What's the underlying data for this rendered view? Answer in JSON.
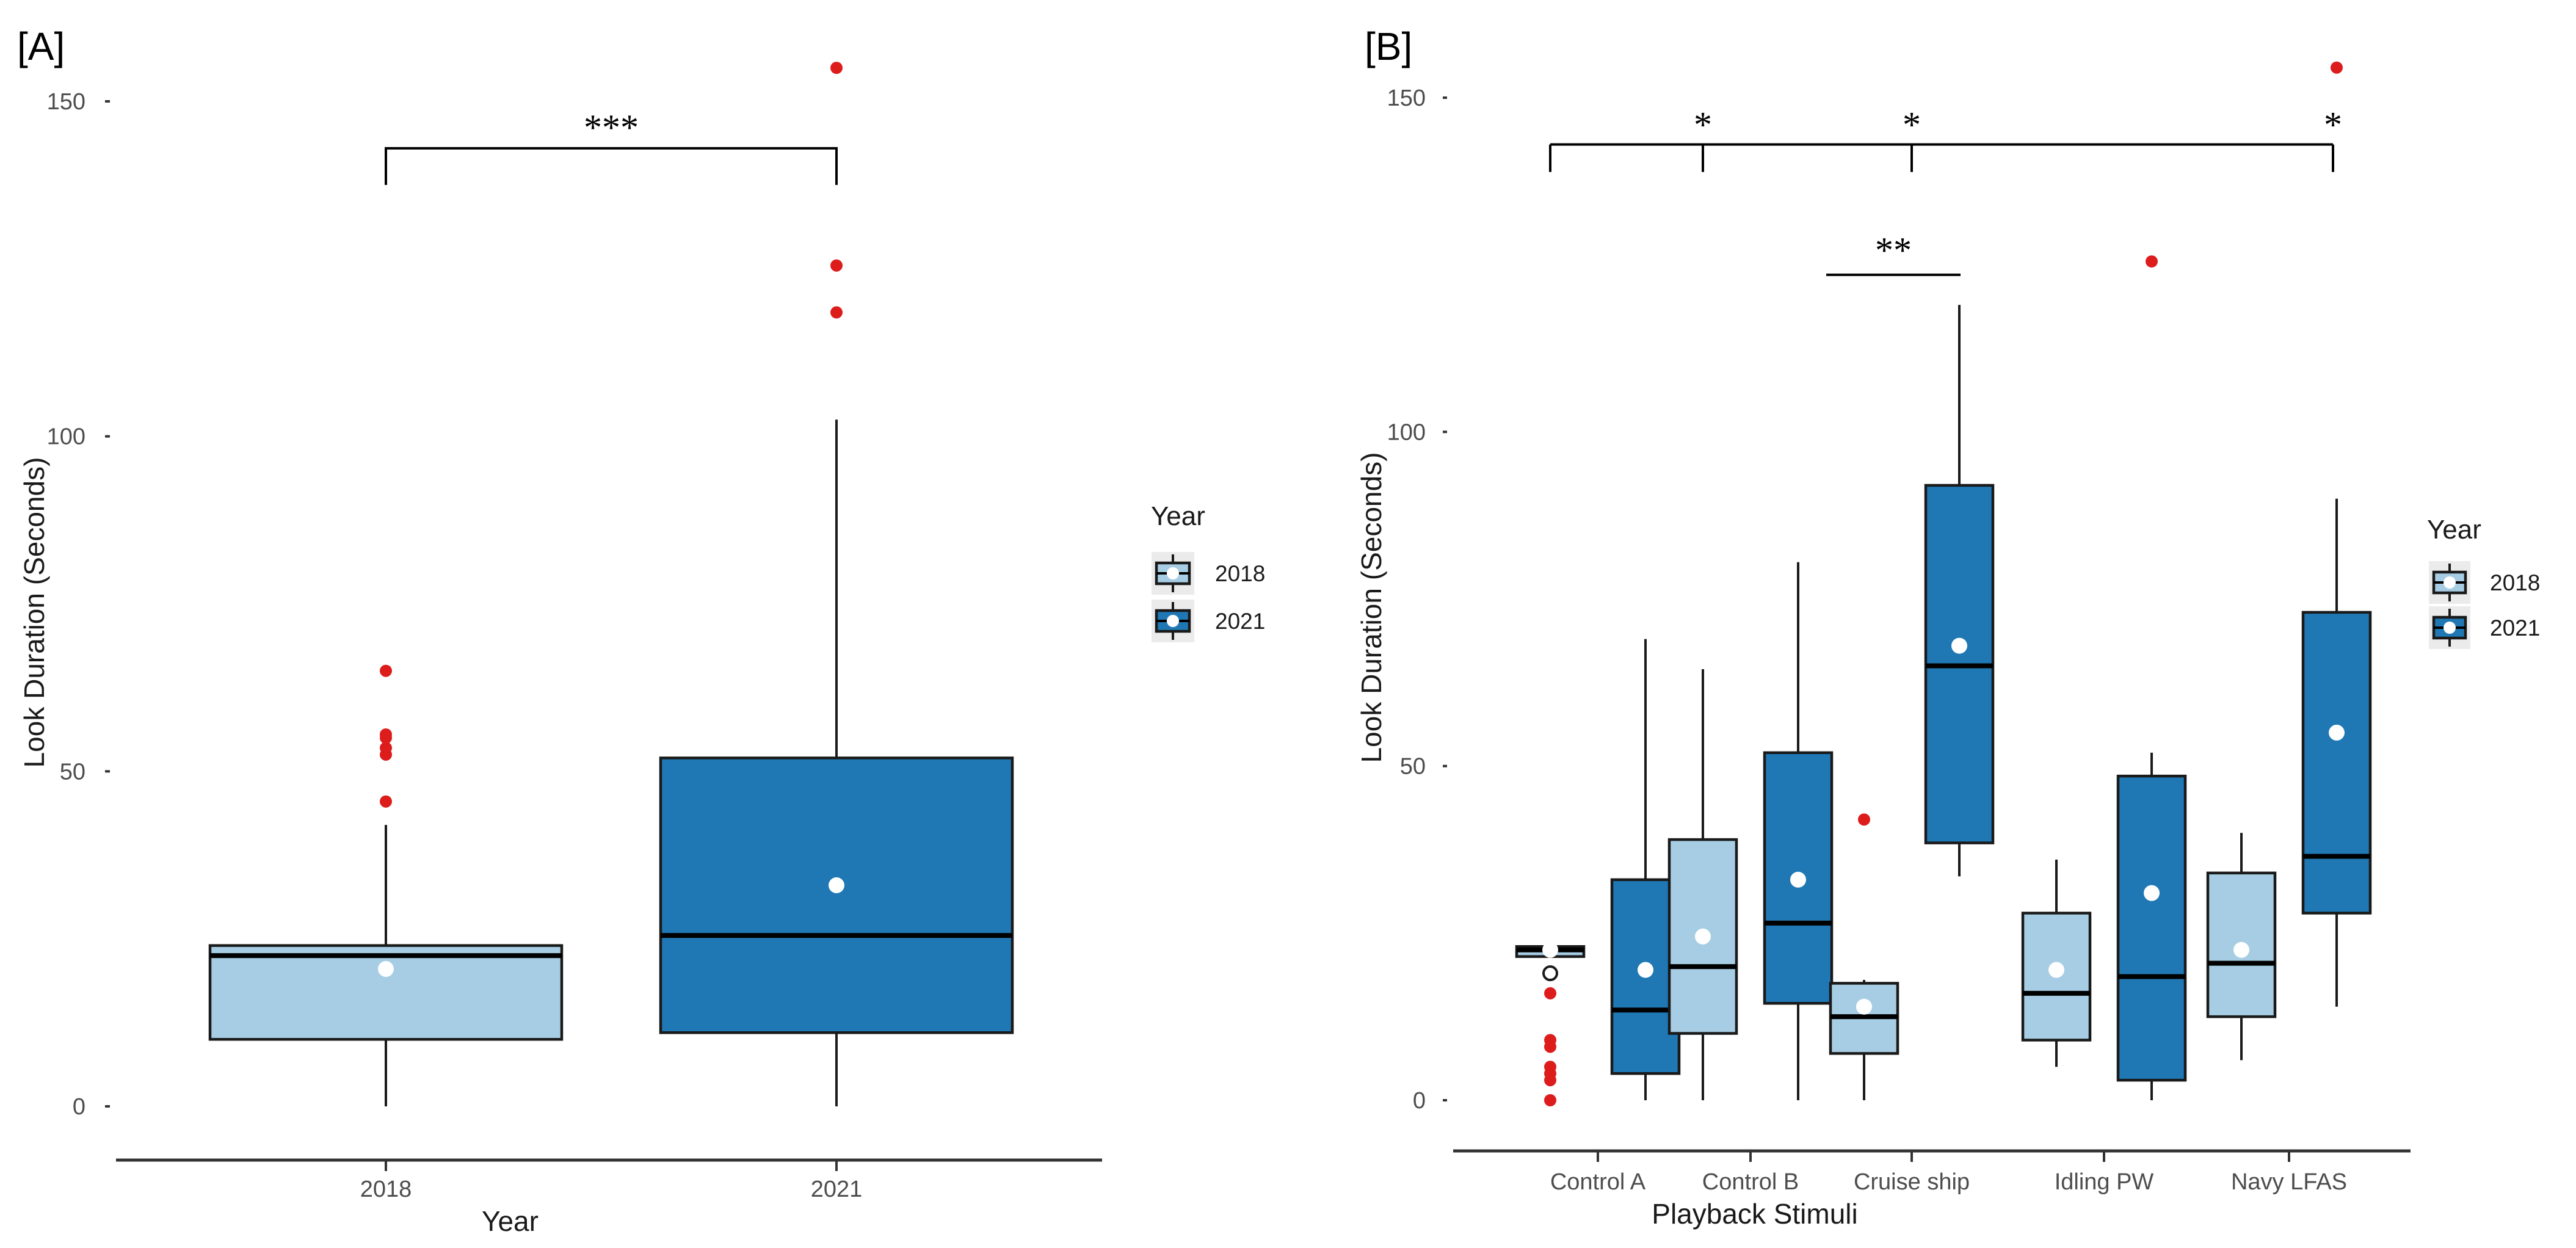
{
  "chart_data": [
    {
      "id": "A",
      "type": "boxplot",
      "panel_label": "[A]",
      "xlabel": "Year",
      "ylabel": "Look Duration (Seconds)",
      "ylim": [
        -8,
        158
      ],
      "yticks": [
        0,
        50,
        100,
        150
      ],
      "categories": [
        "2018",
        "2021"
      ],
      "boxes": [
        {
          "category": "2018",
          "group": "2018",
          "min": 0,
          "q1": 10,
          "median": 22.5,
          "q3": 24,
          "max": 42,
          "mean": 20.5,
          "outliers": [
            45.5,
            52.5,
            53.5,
            55,
            55.5,
            65
          ]
        },
        {
          "category": "2021",
          "group": "2021",
          "min": 0,
          "q1": 11,
          "median": 25.5,
          "q3": 52,
          "max": 102.5,
          "mean": 33,
          "outliers": [
            118.5,
            125.5,
            155
          ]
        }
      ],
      "significance": [
        {
          "from": "2018",
          "to": "2021",
          "label": "***",
          "y": 143
        }
      ],
      "legend": {
        "title": "Year",
        "entries": [
          "2018",
          "2021"
        ],
        "position": "right"
      }
    },
    {
      "id": "B",
      "type": "boxplot",
      "panel_label": "[B]",
      "xlabel": "Playback Stimuli",
      "ylabel": "Look Duration (Seconds)",
      "ylim": [
        -8,
        158
      ],
      "yticks": [
        0,
        50,
        100,
        150
      ],
      "categories": [
        "Control A",
        "Control B",
        "Cruise ship",
        "Idling PW",
        "Navy  LFAS"
      ],
      "boxes": [
        {
          "category": "Control A",
          "group": "2018",
          "min": 21.5,
          "q1": 21.5,
          "median": 22.5,
          "q3": 23,
          "max": 23.5,
          "mean": 22.5,
          "outliers": [
            0,
            3,
            4,
            5,
            8,
            9,
            16
          ],
          "hollow_points": [
            19
          ]
        },
        {
          "category": "Control A",
          "group": "2021",
          "min": 0,
          "q1": 4,
          "median": 13.5,
          "q3": 33,
          "max": 69,
          "mean": 19.5,
          "outliers": []
        },
        {
          "category": "Control B",
          "group": "2018",
          "min": 0,
          "q1": 10,
          "median": 20,
          "q3": 39,
          "max": 64.5,
          "mean": 24.5,
          "outliers": []
        },
        {
          "category": "Control B",
          "group": "2021",
          "min": 0,
          "q1": 14.5,
          "median": 26.5,
          "q3": 52,
          "max": 80.5,
          "mean": 33,
          "outliers": []
        },
        {
          "category": "Cruise ship",
          "group": "2018",
          "min": 0,
          "q1": 7,
          "median": 12.5,
          "q3": 17.5,
          "max": 18,
          "mean": 14,
          "outliers": [
            42
          ]
        },
        {
          "category": "Cruise ship",
          "group": "2021",
          "min": 33.5,
          "q1": 38.5,
          "median": 65,
          "q3": 92,
          "max": 119,
          "mean": 68,
          "outliers": []
        },
        {
          "category": "Idling PW",
          "group": "2018",
          "min": 5,
          "q1": 9,
          "median": 16,
          "q3": 28,
          "max": 36,
          "mean": 19.5,
          "outliers": []
        },
        {
          "category": "Idling PW",
          "group": "2021",
          "min": 0,
          "q1": 3,
          "median": 18.5,
          "q3": 48.5,
          "max": 52,
          "mean": 31,
          "outliers": [
            125.5
          ]
        },
        {
          "category": "Navy  LFAS",
          "group": "2018",
          "min": 6,
          "q1": 12.5,
          "median": 20.5,
          "q3": 34,
          "max": 40,
          "mean": 22.5,
          "outliers": []
        },
        {
          "category": "Navy  LFAS",
          "group": "2021",
          "min": 14,
          "q1": 28,
          "median": 36.5,
          "q3": 73,
          "max": 90,
          "mean": 55,
          "outliers": [
            154.5
          ]
        }
      ],
      "significance": [
        {
          "type": "bracket",
          "from": "Control A",
          "targets": [
            "Control B",
            "Cruise ship",
            "Navy  LFAS"
          ],
          "labels": [
            "*",
            "*",
            "*"
          ],
          "y": 143
        },
        {
          "type": "line",
          "from": "Cruise ship",
          "to": "Cruise ship",
          "label": "**",
          "y": 123.5
        }
      ],
      "legend": {
        "title": "Year",
        "entries": [
          "2018",
          "2021"
        ],
        "position": "right"
      }
    }
  ],
  "colors": {
    "2018": "#a6cde3",
    "2021": "#1f78b4",
    "outlier": "#dd1c1c"
  }
}
